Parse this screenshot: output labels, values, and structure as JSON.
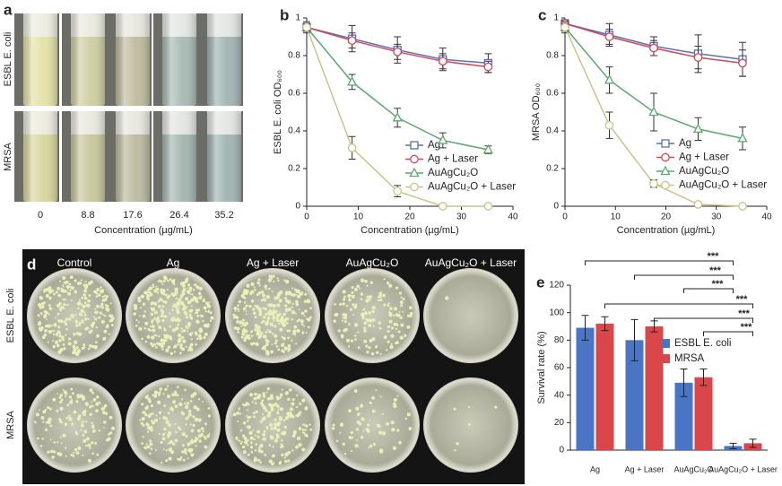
{
  "panel_a": {
    "panel": "a",
    "row_labels": [
      "ESBL E. coli",
      "MRSA"
    ],
    "concentrations": [
      "0",
      "8.8",
      "17.6",
      "26.4",
      "35.2"
    ],
    "x_label": "Concentration (µg/mL)"
  },
  "panel_d": {
    "panel": "d",
    "column_labels": [
      "Control",
      "Ag",
      "Ag + Laser",
      "AuAgCu₂O",
      "AuAgCu₂O + Laser"
    ],
    "row_labels": [
      "ESBL E. coli",
      "MRSA"
    ]
  },
  "chart_data": [
    {
      "type": "line",
      "panel": "b",
      "x_label": "Concentration (µg/mL)",
      "y_label": "ESBL E. coli OD₆₀₀",
      "x": [
        0,
        8.8,
        17.6,
        26.4,
        35.2
      ],
      "xlim": [
        0,
        40
      ],
      "xticks": [
        0,
        10,
        20,
        30,
        40
      ],
      "ylim": [
        0,
        1
      ],
      "yticks": [
        0,
        0.2,
        0.4,
        0.6,
        0.8,
        1
      ],
      "series": [
        {
          "name": "Ag",
          "color": "#5b6fb5",
          "marker": "square",
          "values": [
            0.95,
            0.89,
            0.83,
            0.78,
            0.76
          ],
          "errors": [
            0.03,
            0.07,
            0.07,
            0.06,
            0.05
          ]
        },
        {
          "name": "Ag + Laser",
          "color": "#d2485a",
          "marker": "circle",
          "values": [
            0.95,
            0.88,
            0.82,
            0.77,
            0.74
          ],
          "errors": [
            0.02,
            0.04,
            0.04,
            0.04,
            0.03
          ]
        },
        {
          "name": "AuAgCu₂O",
          "color": "#5aa86e",
          "marker": "triangle",
          "values": [
            0.95,
            0.66,
            0.47,
            0.35,
            0.3
          ],
          "errors": [
            0.02,
            0.04,
            0.05,
            0.04,
            0.02
          ]
        },
        {
          "name": "AuAgCu₂O + Laser",
          "color": "#c9c48a",
          "marker": "circle",
          "values": [
            0.95,
            0.31,
            0.08,
            0,
            0
          ],
          "errors": [
            0.02,
            0.06,
            0.03,
            0.01,
            0.01
          ]
        }
      ]
    },
    {
      "type": "line",
      "panel": "c",
      "x_label": "Concentration (µg/mL)",
      "y_label": "MRSA OD₆₀₀",
      "x": [
        0,
        8.8,
        17.6,
        26.4,
        35.2
      ],
      "xlim": [
        0,
        40
      ],
      "xticks": [
        0,
        10,
        20,
        30,
        40
      ],
      "ylim": [
        0,
        1
      ],
      "yticks": [
        0,
        0.2,
        0.4,
        0.6,
        0.8,
        1
      ],
      "series": [
        {
          "name": "Ag",
          "color": "#5b6fb5",
          "marker": "square",
          "values": [
            0.97,
            0.91,
            0.85,
            0.81,
            0.78
          ],
          "errors": [
            0.02,
            0.06,
            0.05,
            0.1,
            0.09
          ]
        },
        {
          "name": "Ag + Laser",
          "color": "#d2485a",
          "marker": "circle",
          "values": [
            0.97,
            0.9,
            0.84,
            0.79,
            0.76
          ],
          "errors": [
            0.02,
            0.04,
            0.04,
            0.06,
            0.07
          ]
        },
        {
          "name": "AuAgCu₂O",
          "color": "#5aa86e",
          "marker": "triangle",
          "values": [
            0.95,
            0.67,
            0.5,
            0.41,
            0.36
          ],
          "errors": [
            0.03,
            0.07,
            0.1,
            0.06,
            0.06
          ]
        },
        {
          "name": "AuAgCu₂O + Laser",
          "color": "#c9c48a",
          "marker": "circle",
          "values": [
            0.95,
            0.43,
            0.12,
            0.01,
            0
          ],
          "errors": [
            0.02,
            0.07,
            0.02,
            0.01,
            0.01
          ]
        }
      ]
    },
    {
      "type": "bar",
      "panel": "e",
      "y_label": "Survival rate (%)",
      "categories": [
        "Ag",
        "Ag + Laser",
        "AuAgCu₂O",
        "AuAgCu₂O + Laser"
      ],
      "ylim": [
        0,
        120
      ],
      "yticks": [
        0,
        20,
        40,
        60,
        80,
        100,
        120
      ],
      "series": [
        {
          "name": "ESBL E. coli",
          "color": "#4a74c4",
          "values": [
            89,
            80,
            49,
            3
          ],
          "errors": [
            9,
            15,
            10,
            2
          ]
        },
        {
          "name": "MRSA",
          "color": "#d9474b",
          "values": [
            92,
            90,
            53,
            5
          ],
          "errors": [
            5,
            4,
            6,
            3
          ]
        }
      ],
      "annotations": [
        "***",
        "***",
        "***",
        "***",
        "***",
        "***"
      ]
    }
  ]
}
